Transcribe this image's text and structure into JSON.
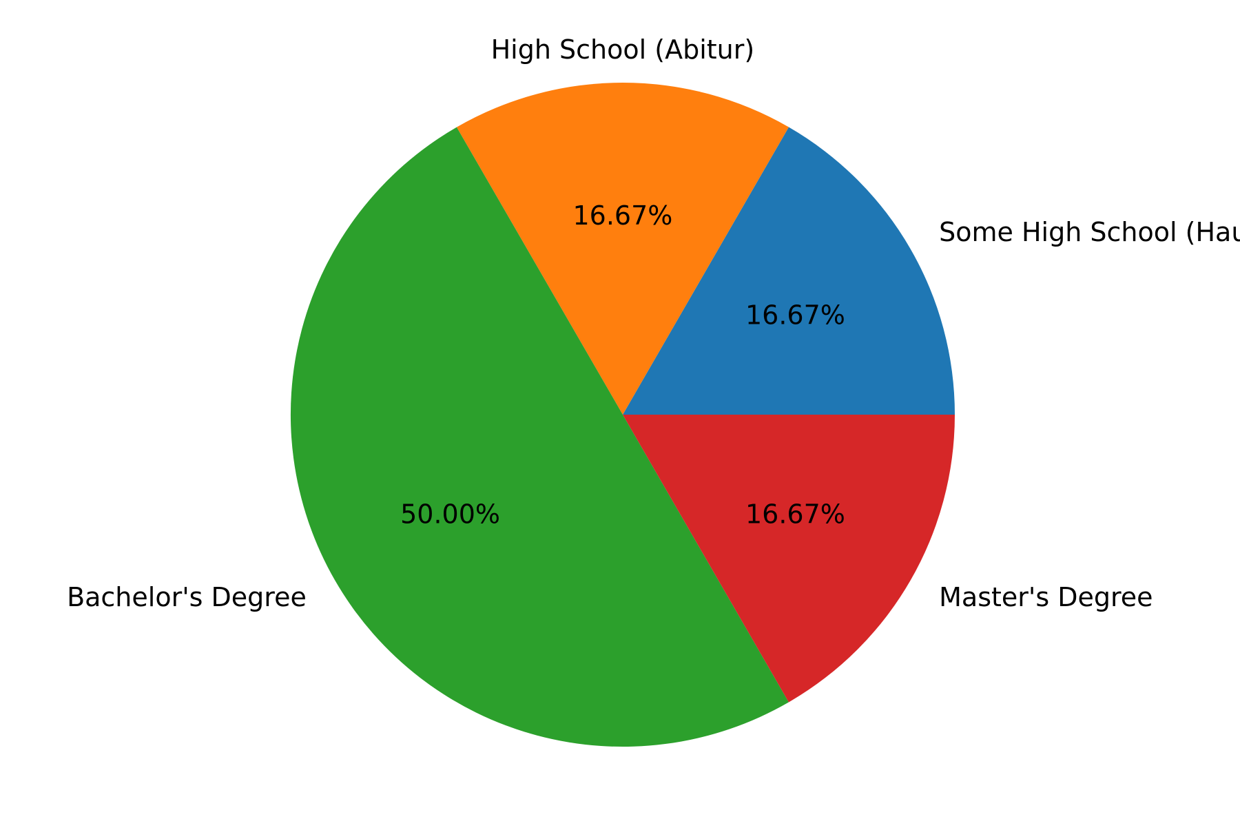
{
  "chart_data": {
    "type": "pie",
    "title": "",
    "categories": [
      "Some High School (Hauptschulabschluss)",
      "High School (Abitur)",
      "Bachelor's Degree",
      "Master's Degree"
    ],
    "values": [
      16.67,
      16.67,
      50.0,
      16.67
    ],
    "value_labels": [
      "16.67%",
      "16.67%",
      "50.00%",
      "16.67%"
    ],
    "colors": [
      "#1f77b4",
      "#ff7f0e",
      "#2ca02c",
      "#d62728"
    ],
    "start_angle_deg": 0,
    "direction": "counterclockwise",
    "legend": "none"
  }
}
